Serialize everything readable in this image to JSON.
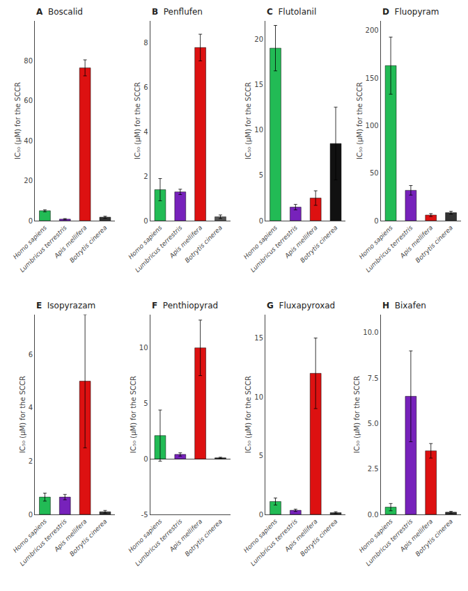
{
  "chart_data": [
    {
      "type": "bar",
      "title": "A  Boscalid",
      "categories": [
        "Homo sapiens",
        "Lumbricus terrestris",
        "Apis mellifera",
        "Botrytis cinerea"
      ],
      "values": [
        5.0,
        0.8,
        76.5,
        1.8
      ],
      "errors": [
        0.5,
        0.3,
        4.0,
        0.5
      ],
      "colors": [
        "#22bb55",
        "#7722bb",
        "#dd1111",
        "#333333"
      ],
      "ylabel": "IC₅₀ (μM) for the SCCR",
      "ylim": [
        0,
        100
      ],
      "yticks": [
        0,
        20,
        40,
        60,
        80
      ],
      "grid": false
    },
    {
      "type": "bar",
      "title": "B  Penflufen",
      "categories": [
        "Homo sapiens",
        "Lumbricus terrestris",
        "Apis mellifera",
        "Botrytis cinerea"
      ],
      "values": [
        1.4,
        1.3,
        7.8,
        0.18
      ],
      "errors": [
        0.5,
        0.12,
        0.6,
        0.08
      ],
      "colors": [
        "#22bb55",
        "#7722bb",
        "#dd1111",
        "#555555"
      ],
      "ylabel": "IC₅₀ (μM) for the SCCR",
      "ylim": [
        0,
        9
      ],
      "yticks": [
        0,
        2,
        4,
        6,
        8
      ],
      "grid": false
    },
    {
      "type": "bar",
      "title": "C  Flutolanil",
      "categories": [
        "Homo sapiens",
        "Lumbricus terrestris",
        "Apis mellifera",
        "Botrytis cinerea"
      ],
      "values": [
        19.0,
        1.5,
        2.5,
        8.5
      ],
      "errors": [
        2.5,
        0.3,
        0.8,
        4.0
      ],
      "colors": [
        "#22bb55",
        "#7722bb",
        "#dd1111",
        "#111111"
      ],
      "ylabel": "IC₅₀ (μM) for the SCCR",
      "ylim": [
        0,
        22
      ],
      "yticks": [
        0,
        5,
        10,
        15,
        20
      ],
      "grid": false
    },
    {
      "type": "bar",
      "title": "D  Fluopyram",
      "categories": [
        "Homo sapiens",
        "Lumbricus terrestris",
        "Apis mellifera",
        "Botrytis cinerea"
      ],
      "values": [
        163.0,
        32.0,
        6.0,
        8.5
      ],
      "errors": [
        30.0,
        5.0,
        1.5,
        1.5
      ],
      "colors": [
        "#22bb55",
        "#7722bb",
        "#dd1111",
        "#333333"
      ],
      "ylabel": "IC₅₀ (μM) for the SCCR",
      "ylim": [
        0,
        210
      ],
      "yticks": [
        0,
        50,
        100,
        150,
        200
      ],
      "grid": false
    },
    {
      "type": "bar",
      "title": "E  Isopyrazam",
      "categories": [
        "Homo sapiens",
        "Lumbricus terrestris",
        "Apis mellifera",
        "Botrytis cinerea"
      ],
      "values": [
        0.65,
        0.65,
        5.0,
        0.1
      ],
      "errors": [
        0.15,
        0.1,
        2.5,
        0.05
      ],
      "colors": [
        "#22bb55",
        "#7722bb",
        "#dd1111",
        "#333333"
      ],
      "ylabel": "IC₅₀ (μM) for the SCCR",
      "ylim": [
        0,
        7.5
      ],
      "yticks": [
        0,
        2,
        4,
        6
      ],
      "grid": false
    },
    {
      "type": "bar",
      "title": "F  Penthiopyrad",
      "categories": [
        "Homo sapiens",
        "Lumbricus terrestris",
        "Apis mellifera",
        "Botrytis cinerea"
      ],
      "values": [
        2.1,
        0.4,
        10.0,
        0.1
      ],
      "errors": [
        2.3,
        0.15,
        2.5,
        0.05
      ],
      "colors": [
        "#22bb55",
        "#7722bb",
        "#dd1111",
        "#333333"
      ],
      "ylabel": "IC₅₀ (μM) for the SCCR",
      "ylim": [
        -5,
        13
      ],
      "yticks": [
        -5,
        0,
        5,
        10
      ],
      "grid": false
    },
    {
      "type": "bar",
      "title": "G  Fluxapyroxad",
      "categories": [
        "Homo sapiens",
        "Lumbricus terrestris",
        "Apis mellifera",
        "Botrytis cinerea"
      ],
      "values": [
        1.1,
        0.35,
        12.0,
        0.15
      ],
      "errors": [
        0.3,
        0.1,
        3.0,
        0.08
      ],
      "colors": [
        "#22bb55",
        "#7722bb",
        "#dd1111",
        "#333333"
      ],
      "ylabel": "IC₅₀ (μM) for the SCCR",
      "ylim": [
        0,
        17
      ],
      "yticks": [
        0,
        5,
        10,
        15
      ],
      "grid": false
    },
    {
      "type": "bar",
      "title": "H  Bixafen",
      "categories": [
        "Homo sapiens",
        "Lumbricus terrestris",
        "Apis mellifera",
        "Botrytis cinerea"
      ],
      "values": [
        0.4,
        6.5,
        3.5,
        0.12
      ],
      "errors": [
        0.2,
        2.5,
        0.4,
        0.05
      ],
      "colors": [
        "#22bb55",
        "#7722bb",
        "#dd1111",
        "#333333"
      ],
      "ylabel": "IC₅₀ (μM) for the SCCR",
      "ylim": [
        0,
        11
      ],
      "yticks": [
        {
          "value": 0,
          "label": "0.0"
        },
        2.5,
        {
          "value": 5,
          "label": "5.0"
        },
        7.5,
        {
          "value": 10,
          "label": "10.0"
        }
      ],
      "grid": false
    }
  ]
}
